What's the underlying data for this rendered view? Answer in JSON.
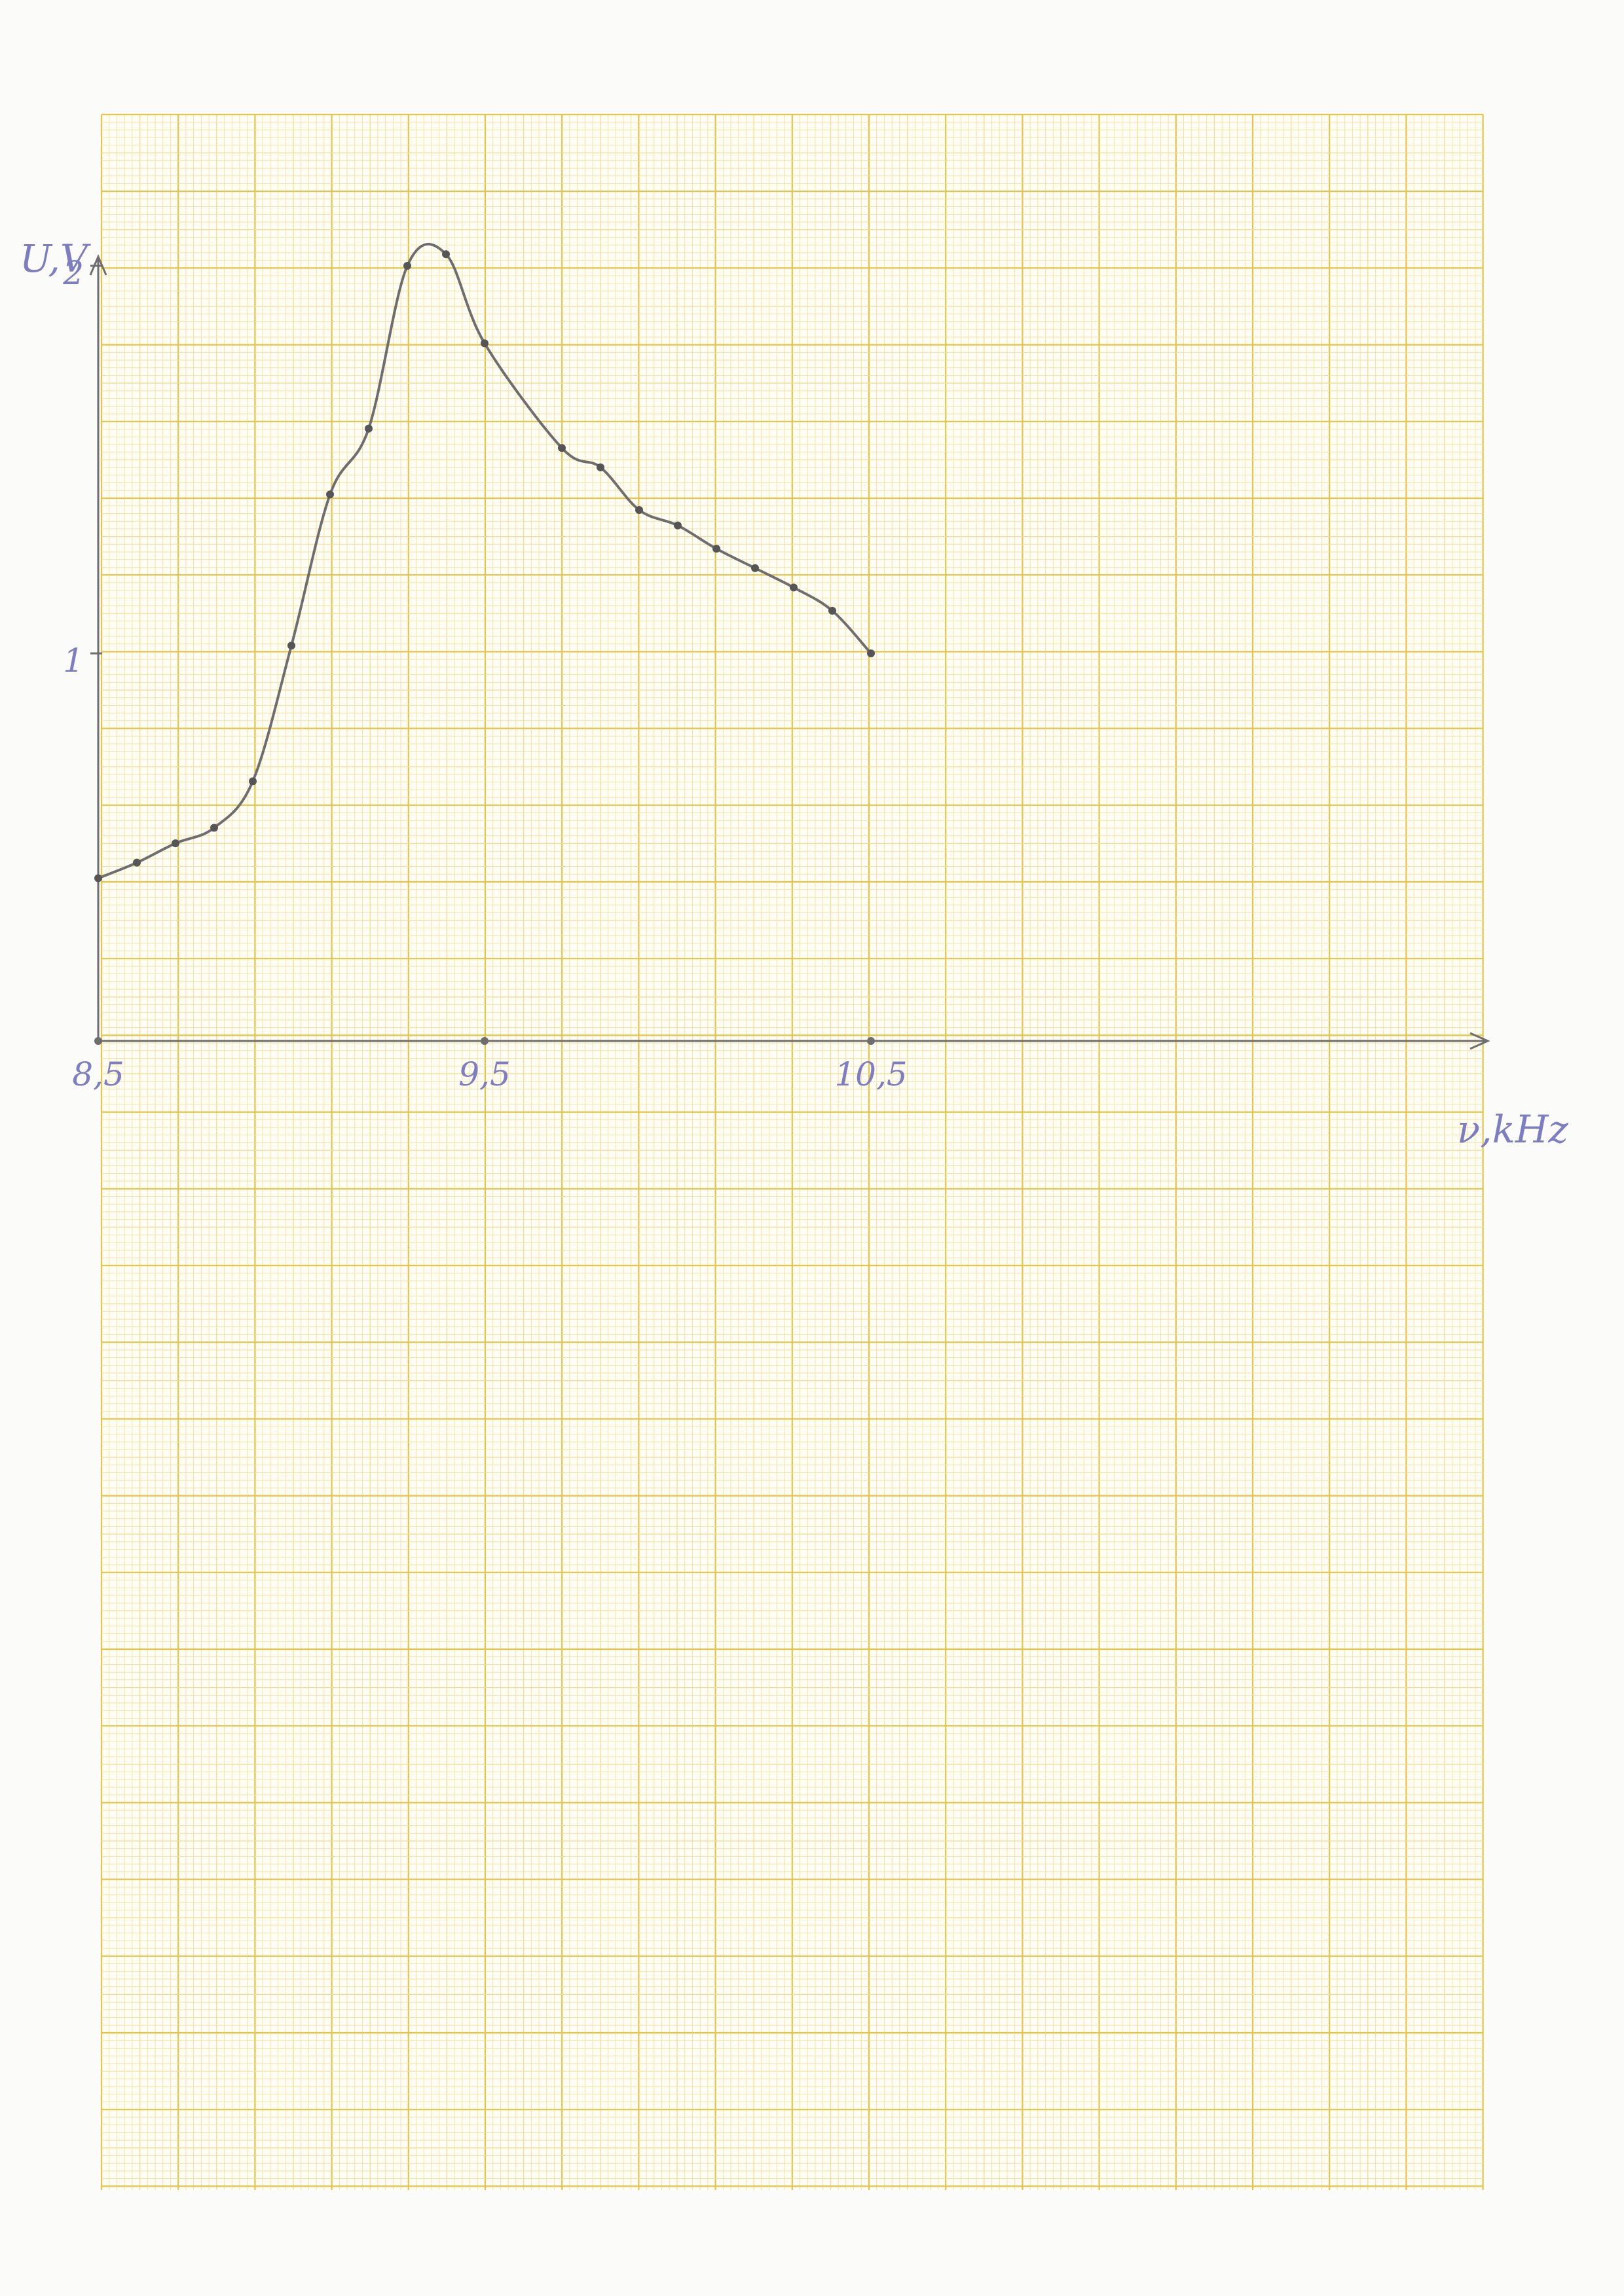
{
  "chart_data": {
    "type": "line",
    "title": "",
    "xlabel": "ν,kHz",
    "ylabel": "U,V",
    "xlim": [
      8.5,
      12.0
    ],
    "ylim": [
      0,
      2.0
    ],
    "x_ticks": [
      {
        "value": 8.5,
        "label": "8,5"
      },
      {
        "value": 9.5,
        "label": "9,5"
      },
      {
        "value": 10.5,
        "label": "10,5"
      }
    ],
    "y_ticks": [
      {
        "value": 1,
        "label": "1"
      },
      {
        "value": 2,
        "label": "2"
      }
    ],
    "grid": true,
    "legend": "none",
    "series": [
      {
        "x": [
          8.5,
          8.6,
          8.7,
          8.8,
          8.9,
          9.0,
          9.1,
          9.2,
          9.3,
          9.4,
          9.5,
          9.7,
          9.8,
          9.9,
          10.0,
          10.1,
          10.2,
          10.3,
          10.4,
          10.5
        ],
        "y": [
          0.42,
          0.46,
          0.51,
          0.55,
          0.67,
          1.02,
          1.41,
          1.58,
          2.0,
          2.03,
          1.8,
          1.53,
          1.48,
          1.37,
          1.33,
          1.27,
          1.22,
          1.17,
          1.11,
          1.0
        ]
      }
    ]
  },
  "colors": {
    "paper": "#fbfbf9",
    "grid_major": "#e6c44a",
    "grid_minor": "#f1dc95",
    "pencil": "#6e6e6e",
    "ink_blue": "#7d7dbf"
  }
}
